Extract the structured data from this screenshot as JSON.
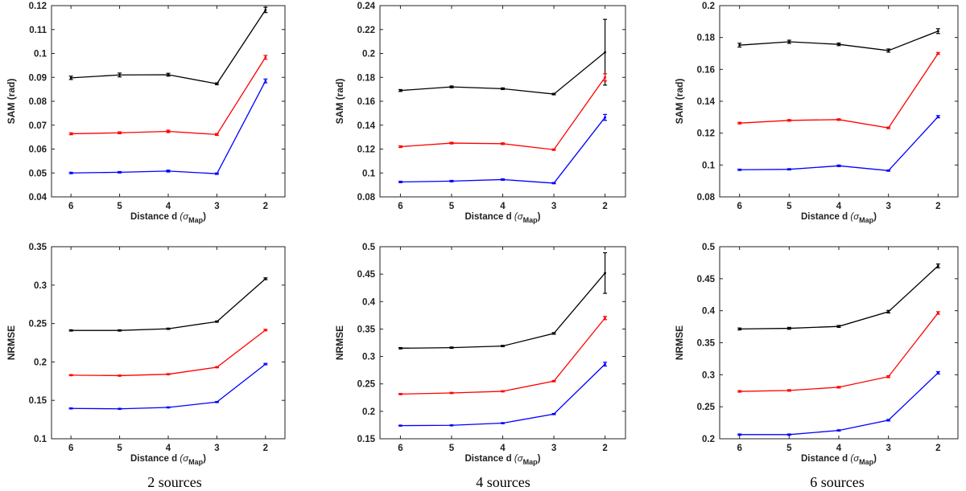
{
  "figure": {
    "captions": [
      "2 sources",
      "4 sources",
      "6 sources"
    ]
  },
  "chart_data": [
    {
      "type": "line",
      "panel": "SAM 2 sources",
      "title": "",
      "xlabel": "Distance d",
      "xlabel_sub": "Map",
      "ylabel": "SAM (rad)",
      "x": [
        6,
        5,
        4,
        3,
        2
      ],
      "xlim": [
        6.4,
        1.6
      ],
      "x_reversed": true,
      "ylim": [
        0.04,
        0.12
      ],
      "yticks": [
        "0.04",
        "0.05",
        "0.06",
        "0.07",
        "0.08",
        "0.09",
        "0.1",
        "0.11",
        "0.12"
      ],
      "series": [
        {
          "name": "black",
          "color": "#000000",
          "values": [
            0.0898,
            0.091,
            0.0911,
            0.0873,
            0.1182
          ],
          "errors": [
            0.0007,
            0.0008,
            0.0006,
            0.0004,
            0.0011
          ]
        },
        {
          "name": "red",
          "color": "#ff0000",
          "values": [
            0.0664,
            0.0668,
            0.0674,
            0.0661,
            0.0984
          ],
          "errors": [
            0.0004,
            0.0004,
            0.0005,
            0.0004,
            0.0008
          ]
        },
        {
          "name": "blue",
          "color": "#0000ff",
          "values": [
            0.05,
            0.0503,
            0.0508,
            0.0497,
            0.0885
          ],
          "errors": [
            0.0003,
            0.0003,
            0.0004,
            0.0003,
            0.0008
          ]
        }
      ]
    },
    {
      "type": "line",
      "panel": "SAM 4 sources",
      "title": "",
      "xlabel": "Distance d",
      "xlabel_sub": "Map",
      "ylabel": "SAM (rad)",
      "x": [
        6,
        5,
        4,
        3,
        2
      ],
      "xlim": [
        6.4,
        1.6
      ],
      "x_reversed": true,
      "ylim": [
        0.08,
        0.24
      ],
      "yticks": [
        "0.08",
        "0.1",
        "0.12",
        "0.14",
        "0.16",
        "0.18",
        "0.2",
        "0.22",
        "0.24"
      ],
      "series": [
        {
          "name": "black",
          "color": "#000000",
          "values": [
            0.169,
            0.172,
            0.1705,
            0.166,
            0.201
          ],
          "errors": [
            0.0008,
            0.0008,
            0.0007,
            0.0006,
            0.0275
          ]
        },
        {
          "name": "red",
          "color": "#ff0000",
          "values": [
            0.122,
            0.125,
            0.1245,
            0.1195,
            0.18
          ],
          "errors": [
            0.0007,
            0.0007,
            0.0007,
            0.0006,
            0.003
          ]
        },
        {
          "name": "blue",
          "color": "#0000ff",
          "values": [
            0.0925,
            0.0932,
            0.0945,
            0.0915,
            0.1465
          ],
          "errors": [
            0.0006,
            0.0006,
            0.0006,
            0.0005,
            0.0025
          ]
        }
      ]
    },
    {
      "type": "line",
      "panel": "SAM 6 sources",
      "title": "",
      "xlabel": "Distance d",
      "xlabel_sub": "Map",
      "ylabel": "SAM (rad)",
      "x": [
        6,
        5,
        4,
        3,
        2
      ],
      "xlim": [
        6.4,
        1.6
      ],
      "x_reversed": true,
      "ylim": [
        0.08,
        0.2
      ],
      "yticks": [
        "0.08",
        "0.1",
        "0.12",
        "0.14",
        "0.16",
        "0.18",
        "0.2"
      ],
      "series": [
        {
          "name": "black",
          "color": "#000000",
          "values": [
            0.1752,
            0.1773,
            0.1757,
            0.1718,
            0.184
          ],
          "errors": [
            0.0012,
            0.001,
            0.0008,
            0.001,
            0.0015
          ]
        },
        {
          "name": "red",
          "color": "#ff0000",
          "values": [
            0.1263,
            0.128,
            0.1285,
            0.1233,
            0.17
          ],
          "errors": [
            0.0005,
            0.0005,
            0.0005,
            0.0005,
            0.0006
          ]
        },
        {
          "name": "blue",
          "color": "#0000ff",
          "values": [
            0.097,
            0.0973,
            0.0995,
            0.0965,
            0.1303
          ],
          "errors": [
            0.0004,
            0.0004,
            0.0005,
            0.0004,
            0.0007
          ]
        }
      ]
    },
    {
      "type": "line",
      "panel": "NRMSE 2 sources",
      "title": "",
      "xlabel": "Distance d",
      "xlabel_sub": "Map",
      "ylabel": "NRMSE",
      "x": [
        6,
        5,
        4,
        3,
        2
      ],
      "xlim": [
        6.4,
        1.6
      ],
      "x_reversed": true,
      "ylim": [
        0.1,
        0.35
      ],
      "yticks": [
        "0.1",
        "0.15",
        "0.2",
        "0.25",
        "0.3",
        "0.35"
      ],
      "series": [
        {
          "name": "black",
          "color": "#000000",
          "values": [
            0.241,
            0.241,
            0.2432,
            0.2525,
            0.3083
          ],
          "errors": [
            0.0008,
            0.0008,
            0.0008,
            0.0008,
            0.0012
          ]
        },
        {
          "name": "red",
          "color": "#ff0000",
          "values": [
            0.1828,
            0.1822,
            0.184,
            0.1931,
            0.2415
          ],
          "errors": [
            0.0007,
            0.0007,
            0.0007,
            0.0007,
            0.001
          ]
        },
        {
          "name": "blue",
          "color": "#0000ff",
          "values": [
            0.1395,
            0.139,
            0.1408,
            0.1478,
            0.1972
          ],
          "errors": [
            0.0006,
            0.0006,
            0.0006,
            0.0006,
            0.0009
          ]
        }
      ]
    },
    {
      "type": "line",
      "panel": "NRMSE 4 sources",
      "title": "",
      "xlabel": "Distance d",
      "xlabel_sub": "Map",
      "ylabel": "NRMSE",
      "x": [
        6,
        5,
        4,
        3,
        2
      ],
      "xlim": [
        6.4,
        1.6
      ],
      "x_reversed": true,
      "ylim": [
        0.15,
        0.5
      ],
      "yticks": [
        "0.15",
        "0.2",
        "0.25",
        "0.3",
        "0.35",
        "0.4",
        "0.45",
        "0.5"
      ],
      "series": [
        {
          "name": "black",
          "color": "#000000",
          "values": [
            0.315,
            0.316,
            0.319,
            0.342,
            0.452
          ],
          "errors": [
            0.0012,
            0.0012,
            0.0012,
            0.0015,
            0.037
          ]
        },
        {
          "name": "red",
          "color": "#ff0000",
          "values": [
            0.2315,
            0.2335,
            0.2365,
            0.255,
            0.37
          ],
          "errors": [
            0.001,
            0.001,
            0.001,
            0.0012,
            0.003
          ]
        },
        {
          "name": "blue",
          "color": "#0000ff",
          "values": [
            0.174,
            0.1745,
            0.1785,
            0.195,
            0.286
          ],
          "errors": [
            0.0008,
            0.0008,
            0.0008,
            0.001,
            0.0035
          ]
        }
      ]
    },
    {
      "type": "line",
      "panel": "NRMSE 6 sources",
      "title": "",
      "xlabel": "Distance d",
      "xlabel_sub": "Map",
      "ylabel": "NRMSE",
      "x": [
        6,
        5,
        4,
        3,
        2
      ],
      "xlim": [
        6.4,
        1.6
      ],
      "x_reversed": true,
      "ylim": [
        0.2,
        0.5
      ],
      "yticks": [
        "0.2",
        "0.25",
        "0.3",
        "0.35",
        "0.4",
        "0.45",
        "0.5"
      ],
      "series": [
        {
          "name": "black",
          "color": "#000000",
          "values": [
            0.3715,
            0.3725,
            0.3755,
            0.3985,
            0.47
          ],
          "errors": [
            0.0015,
            0.0015,
            0.0015,
            0.002,
            0.003
          ]
        },
        {
          "name": "red",
          "color": "#ff0000",
          "values": [
            0.274,
            0.2755,
            0.2805,
            0.297,
            0.3965
          ],
          "errors": [
            0.0012,
            0.0012,
            0.0012,
            0.0015,
            0.002
          ]
        },
        {
          "name": "blue",
          "color": "#0000ff",
          "values": [
            0.2065,
            0.2065,
            0.213,
            0.229,
            0.303
          ],
          "errors": [
            0.001,
            0.001,
            0.001,
            0.0012,
            0.0018
          ]
        }
      ]
    }
  ]
}
